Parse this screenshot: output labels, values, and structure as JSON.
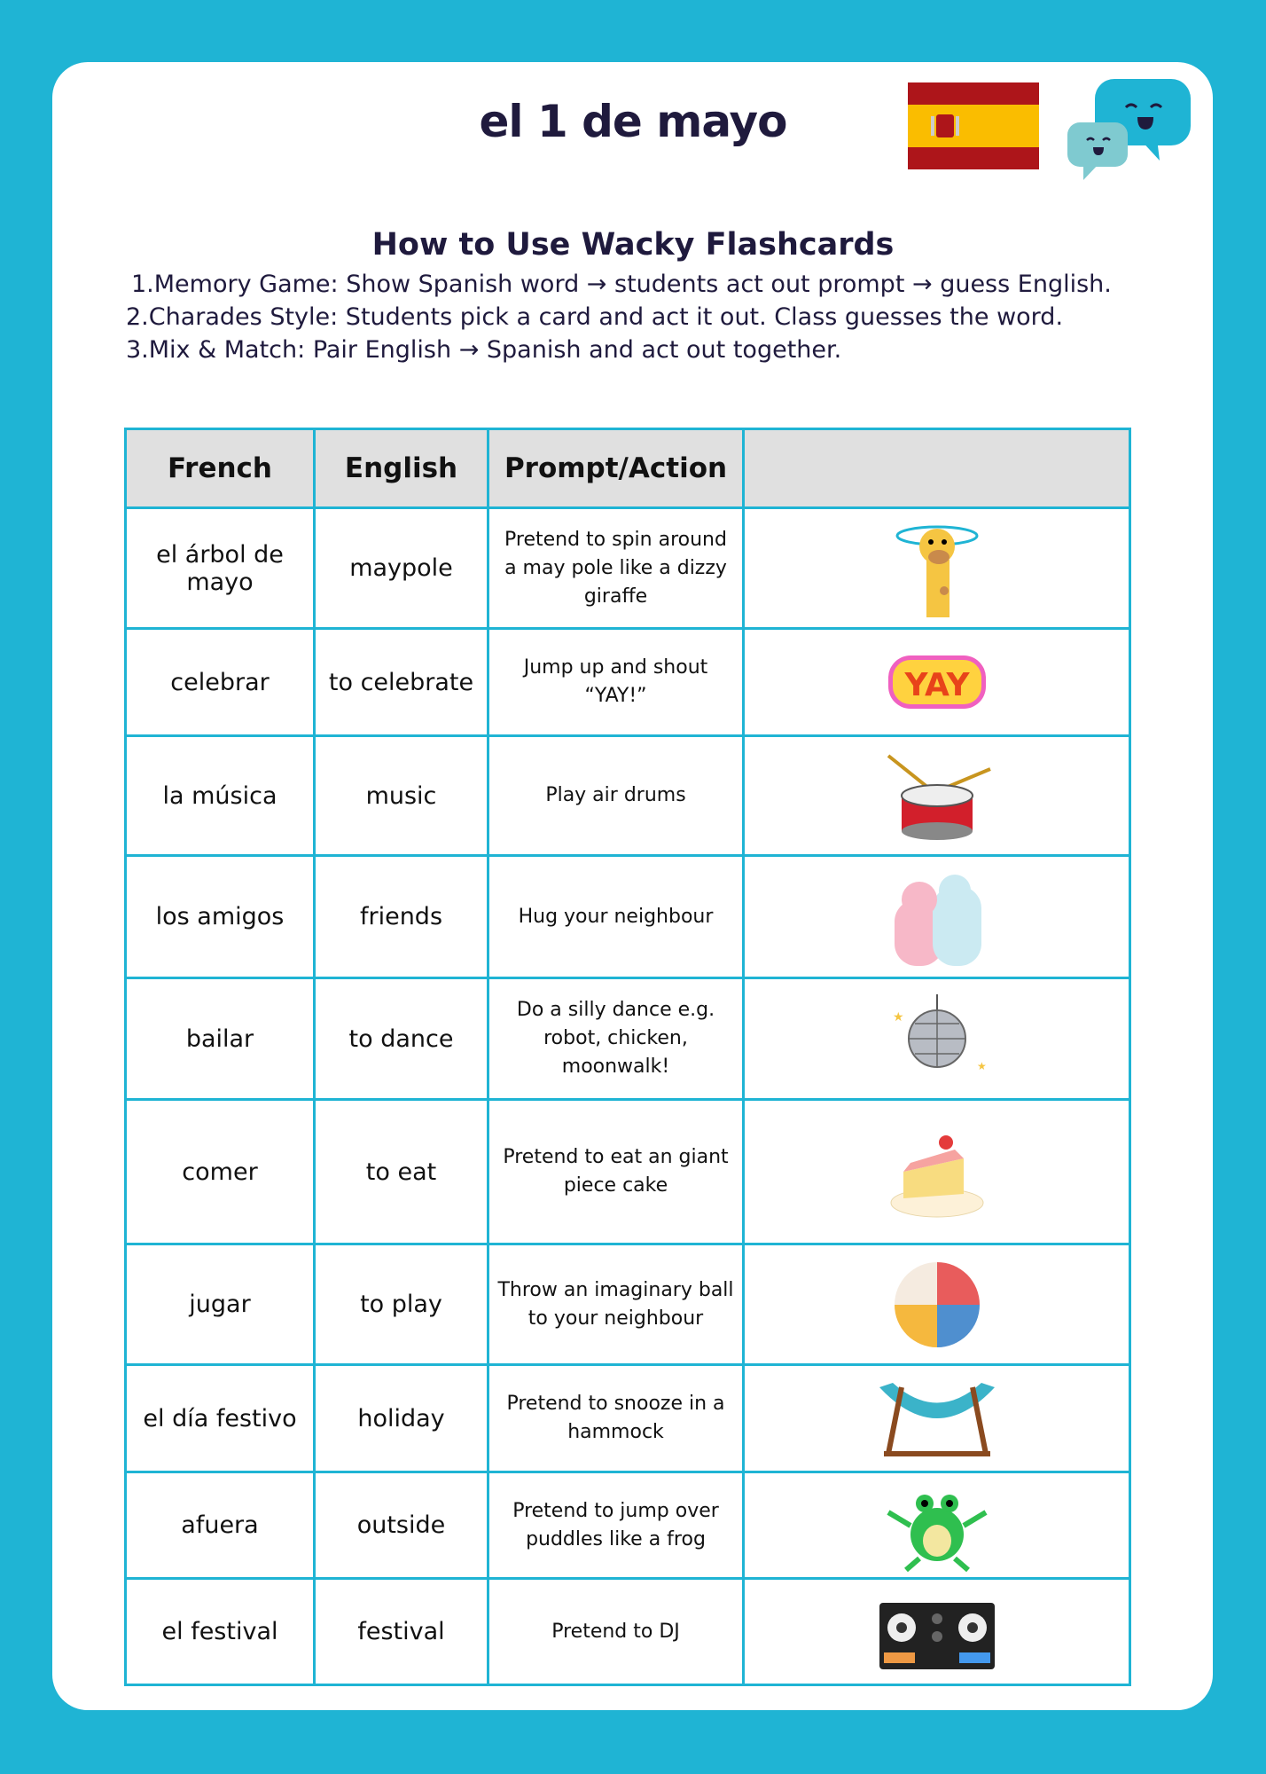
{
  "title": "el 1 de mayo",
  "howto": {
    "heading": "How to Use Wacky Flashcards",
    "steps": [
      "1.Memory Game: Show Spanish word → students act out prompt → guess English.",
      "2.Charades Style: Students pick a card and act it out. Class guesses the word.",
      "3.Mix & Match: Pair English → Spanish and act out together."
    ]
  },
  "table": {
    "headers": [
      "French",
      "English",
      "Prompt/Action",
      ""
    ],
    "rows": [
      {
        "french": "el árbol de mayo",
        "english": "maypole",
        "prompt": "Pretend to spin around a may pole like a dizzy giraffe",
        "icon": "giraffe-icon"
      },
      {
        "french": "celebrar",
        "english": "to celebrate",
        "prompt": "Jump up and shout “YAY!”",
        "icon": "yay-icon",
        "icon_text": "YAY"
      },
      {
        "french": "la música",
        "english": "music",
        "prompt": "Play air drums",
        "icon": "drum-icon"
      },
      {
        "french": "los amigos",
        "english": "friends",
        "prompt": "Hug your neighbour",
        "icon": "hug-icon"
      },
      {
        "french": "bailar",
        "english": "to dance",
        "prompt": "Do a silly dance e.g. robot, chicken, moonwalk!",
        "icon": "disco-ball-icon"
      },
      {
        "french": "comer",
        "english": "to eat",
        "prompt": "Pretend to eat an giant piece cake",
        "icon": "cake-icon"
      },
      {
        "french": "jugar",
        "english": "to play",
        "prompt": "Throw an imaginary ball to your neighbour",
        "icon": "beach-ball-icon"
      },
      {
        "french": "el día festivo",
        "english": "holiday",
        "prompt": "Pretend to snooze in a hammock",
        "icon": "hammock-icon"
      },
      {
        "french": "afuera",
        "english": "outside",
        "prompt": "Pretend to jump over puddles like a frog",
        "icon": "frog-icon"
      },
      {
        "french": "el festival",
        "english": "festival",
        "prompt": "Pretend to DJ",
        "icon": "dj-deck-icon"
      }
    ]
  },
  "colors": {
    "background": "#1fb4d4",
    "title": "#1f1a3d",
    "header_bg": "#e0e0e0",
    "border": "#1fb4d4"
  }
}
